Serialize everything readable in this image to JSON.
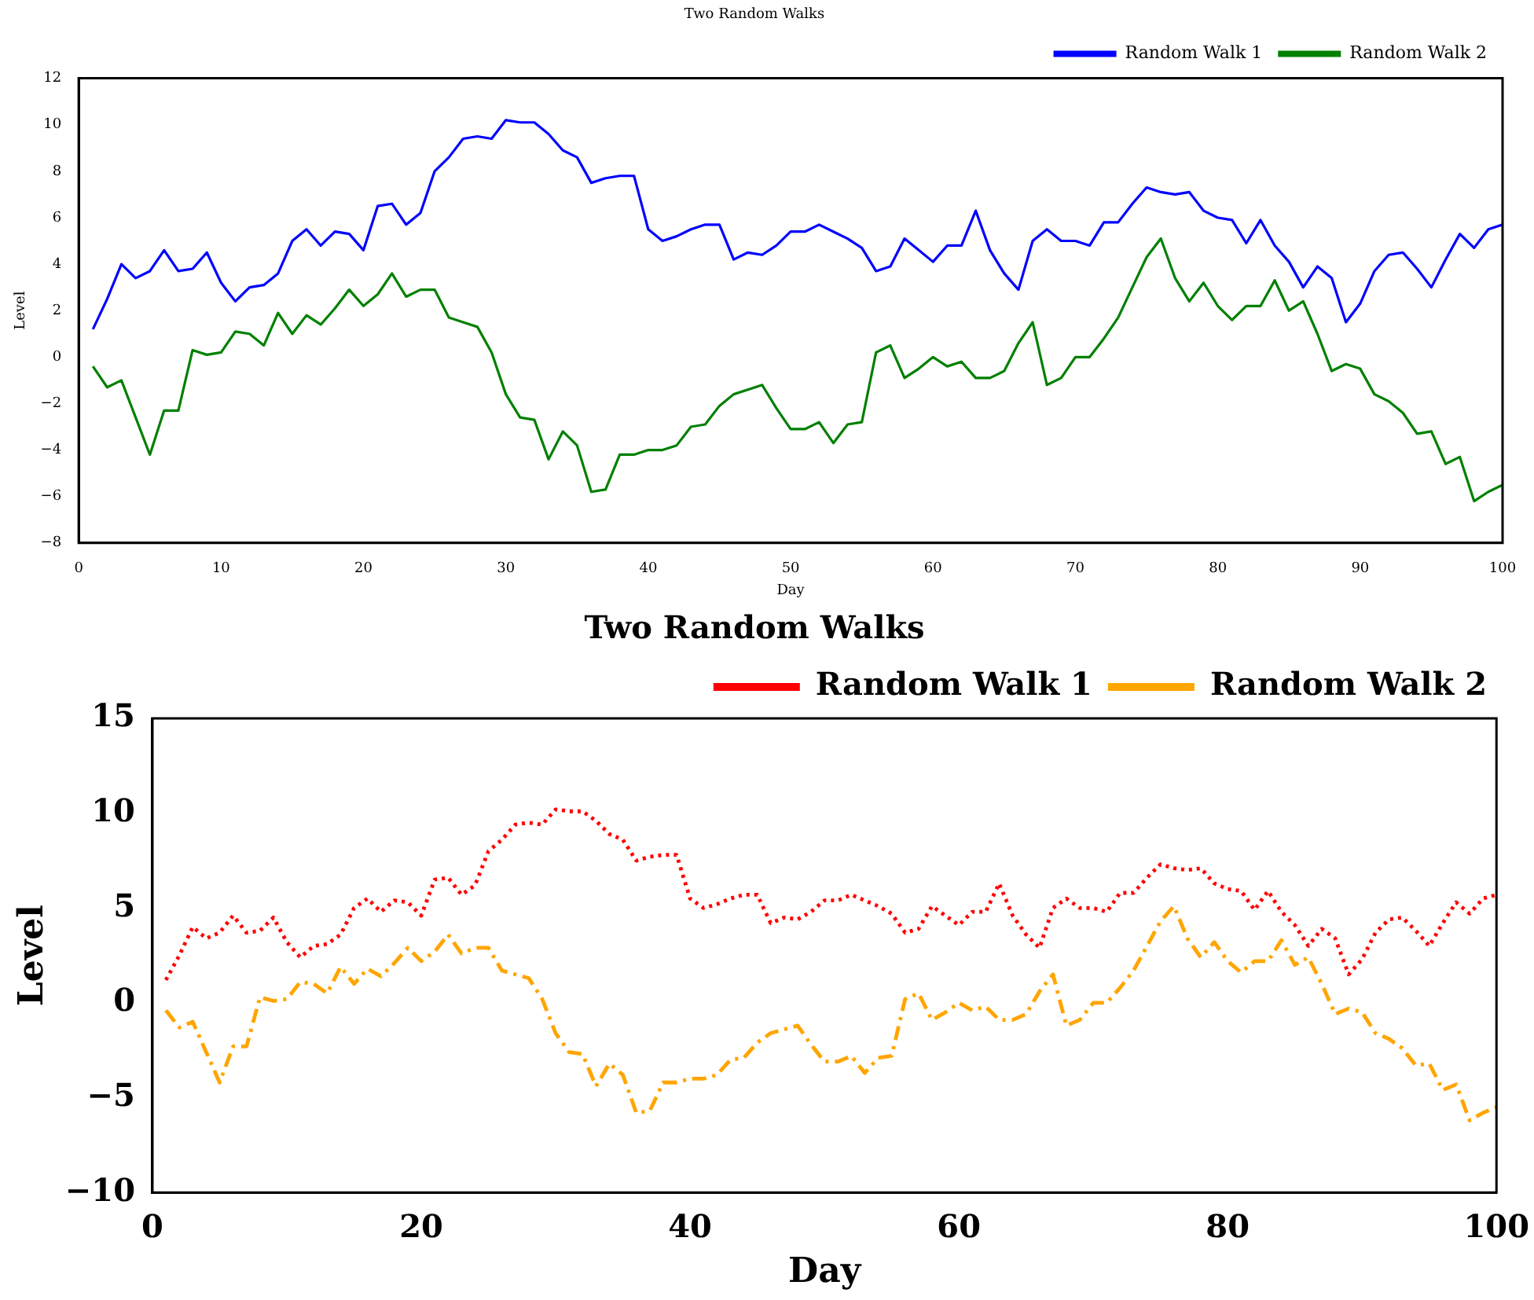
{
  "chart_data": [
    {
      "type": "line",
      "title": "Two Random Walks",
      "xlabel": "Day",
      "ylabel": "Level",
      "x": [
        1,
        2,
        3,
        4,
        5,
        6,
        7,
        8,
        9,
        10,
        11,
        12,
        13,
        14,
        15,
        16,
        17,
        18,
        19,
        20,
        21,
        22,
        23,
        24,
        25,
        26,
        27,
        28,
        29,
        30,
        31,
        32,
        33,
        34,
        35,
        36,
        37,
        38,
        39,
        40,
        41,
        42,
        43,
        44,
        45,
        46,
        47,
        48,
        49,
        50,
        51,
        52,
        53,
        54,
        55,
        56,
        57,
        58,
        59,
        60,
        61,
        62,
        63,
        64,
        65,
        66,
        67,
        68,
        69,
        70,
        71,
        72,
        73,
        74,
        75,
        76,
        77,
        78,
        79,
        80,
        81,
        82,
        83,
        84,
        85,
        86,
        87,
        88,
        89,
        90,
        91,
        92,
        93,
        94,
        95,
        96,
        97,
        98,
        99,
        100
      ],
      "series": [
        {
          "name": "Random Walk 1",
          "color": "#0000ff",
          "line_style": "solid",
          "values": [
            1.2,
            2.5,
            4.0,
            3.4,
            3.7,
            4.6,
            3.7,
            3.8,
            4.5,
            3.2,
            2.4,
            3.0,
            3.1,
            3.6,
            5.0,
            5.5,
            4.8,
            5.4,
            5.3,
            4.6,
            6.5,
            6.6,
            5.7,
            6.2,
            8.0,
            8.6,
            9.4,
            9.5,
            9.4,
            10.2,
            10.1,
            10.1,
            9.6,
            8.9,
            8.6,
            7.5,
            7.7,
            7.8,
            7.8,
            5.5,
            5.0,
            5.2,
            5.5,
            5.7,
            5.7,
            4.2,
            4.5,
            4.4,
            4.8,
            5.4,
            5.4,
            5.7,
            5.4,
            5.1,
            4.7,
            3.7,
            3.9,
            5.1,
            4.6,
            4.1,
            4.8,
            4.8,
            6.3,
            4.6,
            3.6,
            2.9,
            5.0,
            5.5,
            5.0,
            5.0,
            4.8,
            5.8,
            5.8,
            6.6,
            7.3,
            7.1,
            7.0,
            7.1,
            6.3,
            6.0,
            5.9,
            4.9,
            5.9,
            4.8,
            4.1,
            3.0,
            3.9,
            3.4,
            1.5,
            2.3,
            3.7,
            4.4,
            4.5,
            3.8,
            3.0,
            4.2,
            5.3,
            4.7,
            5.5,
            5.7
          ]
        },
        {
          "name": "Random Walk 2",
          "color": "#008000",
          "line_style": "solid",
          "values": [
            -0.4,
            -1.3,
            -1.0,
            -2.6,
            -4.2,
            -2.3,
            -2.3,
            0.3,
            0.1,
            0.2,
            1.1,
            1.0,
            0.5,
            1.9,
            1.0,
            1.8,
            1.4,
            2.1,
            2.9,
            2.2,
            2.7,
            3.6,
            2.6,
            2.9,
            2.9,
            1.7,
            1.5,
            1.3,
            0.2,
            -1.6,
            -2.6,
            -2.7,
            -4.4,
            -3.2,
            -3.8,
            -5.8,
            -5.7,
            -4.2,
            -4.2,
            -4.0,
            -4.0,
            -3.8,
            -3.0,
            -2.9,
            -2.1,
            -1.6,
            -1.4,
            -1.2,
            -2.2,
            -3.1,
            -3.1,
            -2.8,
            -3.7,
            -2.9,
            -2.8,
            0.2,
            0.5,
            -0.9,
            -0.5,
            0.0,
            -0.4,
            -0.2,
            -0.9,
            -0.9,
            -0.6,
            0.6,
            1.5,
            -1.2,
            -0.9,
            0.0,
            0.0,
            0.8,
            1.7,
            3.0,
            4.3,
            5.1,
            3.4,
            2.4,
            3.2,
            2.2,
            1.6,
            2.2,
            2.2,
            3.3,
            2.0,
            2.4,
            1.0,
            -0.6,
            -0.3,
            -0.5,
            -1.6,
            -1.9,
            -2.4,
            -3.3,
            -3.2,
            -4.6,
            -4.3,
            -6.2,
            -5.8,
            -5.5
          ]
        }
      ],
      "xlim": [
        0,
        100
      ],
      "xticks": [
        0,
        10,
        20,
        30,
        40,
        50,
        60,
        70,
        80,
        90,
        100
      ],
      "ylim": [
        -8,
        12
      ],
      "yticks": [
        -8,
        -6,
        -4,
        -2,
        0,
        2,
        4,
        6,
        8,
        10,
        12
      ],
      "grid": false,
      "legend": "top right",
      "marker": "none"
    },
    {
      "type": "line",
      "title": "Two Random Walks",
      "xlabel": "Day",
      "ylabel": "Level",
      "x": [
        1,
        2,
        3,
        4,
        5,
        6,
        7,
        8,
        9,
        10,
        11,
        12,
        13,
        14,
        15,
        16,
        17,
        18,
        19,
        20,
        21,
        22,
        23,
        24,
        25,
        26,
        27,
        28,
        29,
        30,
        31,
        32,
        33,
        34,
        35,
        36,
        37,
        38,
        39,
        40,
        41,
        42,
        43,
        44,
        45,
        46,
        47,
        48,
        49,
        50,
        51,
        52,
        53,
        54,
        55,
        56,
        57,
        58,
        59,
        60,
        61,
        62,
        63,
        64,
        65,
        66,
        67,
        68,
        69,
        70,
        71,
        72,
        73,
        74,
        75,
        76,
        77,
        78,
        79,
        80,
        81,
        82,
        83,
        84,
        85,
        86,
        87,
        88,
        89,
        90,
        91,
        92,
        93,
        94,
        95,
        96,
        97,
        98,
        99,
        100
      ],
      "series": [
        {
          "name": "Random Walk 1",
          "color": "#ff0000",
          "line_style": "dotted",
          "values": [
            1.2,
            2.5,
            4.0,
            3.4,
            3.7,
            4.6,
            3.7,
            3.8,
            4.5,
            3.2,
            2.4,
            3.0,
            3.1,
            3.6,
            5.0,
            5.5,
            4.8,
            5.4,
            5.3,
            4.6,
            6.5,
            6.6,
            5.7,
            6.2,
            8.0,
            8.6,
            9.4,
            9.5,
            9.4,
            10.2,
            10.1,
            10.1,
            9.6,
            8.9,
            8.6,
            7.5,
            7.7,
            7.8,
            7.8,
            5.5,
            5.0,
            5.2,
            5.5,
            5.7,
            5.7,
            4.2,
            4.5,
            4.4,
            4.8,
            5.4,
            5.4,
            5.7,
            5.4,
            5.1,
            4.7,
            3.7,
            3.9,
            5.1,
            4.6,
            4.1,
            4.8,
            4.8,
            6.3,
            4.6,
            3.6,
            2.9,
            5.0,
            5.5,
            5.0,
            5.0,
            4.8,
            5.8,
            5.8,
            6.6,
            7.3,
            7.1,
            7.0,
            7.1,
            6.3,
            6.0,
            5.9,
            4.9,
            5.9,
            4.8,
            4.1,
            3.0,
            3.9,
            3.4,
            1.5,
            2.3,
            3.7,
            4.4,
            4.5,
            3.8,
            3.0,
            4.2,
            5.3,
            4.7,
            5.5,
            5.7
          ]
        },
        {
          "name": "Random Walk 2",
          "color": "#ffa500",
          "line_style": "dashed",
          "values": [
            -0.4,
            -1.3,
            -1.0,
            -2.6,
            -4.2,
            -2.3,
            -2.3,
            0.3,
            0.1,
            0.2,
            1.1,
            1.0,
            0.5,
            1.9,
            1.0,
            1.8,
            1.4,
            2.1,
            2.9,
            2.2,
            2.7,
            3.6,
            2.6,
            2.9,
            2.9,
            1.7,
            1.5,
            1.3,
            0.2,
            -1.6,
            -2.6,
            -2.7,
            -4.4,
            -3.2,
            -3.8,
            -5.8,
            -5.7,
            -4.2,
            -4.2,
            -4.0,
            -4.0,
            -3.8,
            -3.0,
            -2.9,
            -2.1,
            -1.6,
            -1.4,
            -1.2,
            -2.2,
            -3.1,
            -3.1,
            -2.8,
            -3.7,
            -2.9,
            -2.8,
            0.2,
            0.5,
            -0.9,
            -0.5,
            0.0,
            -0.4,
            -0.2,
            -0.9,
            -0.9,
            -0.6,
            0.6,
            1.5,
            -1.2,
            -0.9,
            0.0,
            0.0,
            0.8,
            1.7,
            3.0,
            4.3,
            5.1,
            3.4,
            2.4,
            3.2,
            2.2,
            1.6,
            2.2,
            2.2,
            3.3,
            2.0,
            2.4,
            1.0,
            -0.6,
            -0.3,
            -0.5,
            -1.6,
            -1.9,
            -2.4,
            -3.3,
            -3.2,
            -4.6,
            -4.3,
            -6.2,
            -5.8,
            -5.5
          ]
        }
      ],
      "xlim": [
        0,
        100
      ],
      "xticks": [
        0,
        20,
        40,
        60,
        80,
        100
      ],
      "ylim": [
        -10,
        15
      ],
      "yticks": [
        -10,
        -5,
        0,
        5,
        10,
        15
      ],
      "grid": false,
      "legend": "top right",
      "marker": "none"
    }
  ]
}
